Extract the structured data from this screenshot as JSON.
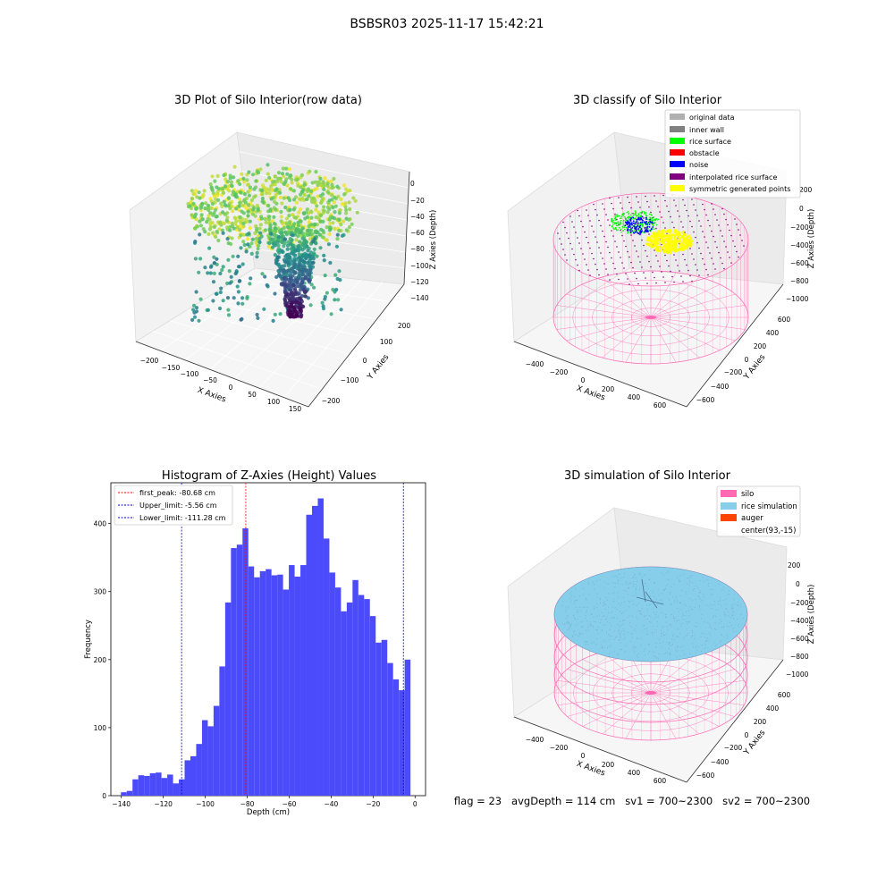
{
  "suptitle": "BSBSR03 2025-11-17 15:42:21",
  "footer": "flag = 23   avgDepth = 114 cm   sv1 = 700~2300   sv2 = 700~2300",
  "colors": {
    "hist_bar": "#4b4bfb",
    "first_peak": "#ff0000",
    "limit": "#0000cc",
    "silo": "#ff69b4",
    "rice_simulation": "#87ceeb",
    "auger": "#ff4500",
    "rice_surface": "#00ff00",
    "noise": "#0000ff",
    "interpolated": "#800080",
    "symmetric": "#ffff00",
    "original": "#b0b0b0",
    "inner_wall": "#808080",
    "obstacle": "#ff0000"
  },
  "panels": {
    "raw": {
      "title": "3D Plot of Silo Interior(row data)",
      "xlabel": "X Axies",
      "ylabel": "Y Axies",
      "zlabel": "Z Axies (Depth)",
      "xticks": [
        "−200",
        "−150",
        "−100",
        "−50",
        "0",
        "50",
        "100",
        "150"
      ],
      "yticks": [
        "200",
        "100",
        "0",
        "−100",
        "−200"
      ],
      "zticks": [
        "0",
        "−20",
        "−40",
        "−60",
        "−80",
        "−100",
        "−120",
        "−140"
      ]
    },
    "classify": {
      "title": "3D classify of Silo Interior",
      "xlabel": "X Axies",
      "ylabel": "Y Axies",
      "zlabel": "Z Axies (Depth)",
      "xticks": [
        "−400",
        "−200",
        "0",
        "200",
        "400",
        "600"
      ],
      "yticks": [
        "600",
        "400",
        "200",
        "0",
        "−200",
        "−400",
        "−600"
      ],
      "zticks": [
        "200",
        "0",
        "−200",
        "−400",
        "−600",
        "−800",
        "−1000"
      ],
      "legend": [
        {
          "label": "original data",
          "color": "#b0b0b0"
        },
        {
          "label": "inner wall",
          "color": "#808080"
        },
        {
          "label": "rice surface",
          "color": "#00ff00"
        },
        {
          "label": "obstacle",
          "color": "#ff0000"
        },
        {
          "label": "noise",
          "color": "#0000ff"
        },
        {
          "label": "interpolated rice surface",
          "color": "#800080"
        },
        {
          "label": "symmetric generated points",
          "color": "#ffff00"
        }
      ]
    },
    "simulation": {
      "title": "3D simulation of Silo Interior",
      "xlabel": "X Axies",
      "ylabel": "Y Axies",
      "zlabel": "Z Axies (Depth)",
      "xticks": [
        "−400",
        "−200",
        "0",
        "200",
        "400",
        "600"
      ],
      "yticks": [
        "600",
        "400",
        "200",
        "0",
        "−200",
        "−400",
        "−600"
      ],
      "zticks": [
        "200",
        "0",
        "−200",
        "−400",
        "−600",
        "−800",
        "−1000"
      ],
      "legend": [
        {
          "label": "silo",
          "color": "#ff69b4"
        },
        {
          "label": "rice simulation",
          "color": "#87ceeb"
        },
        {
          "label": "auger",
          "color": "#ff4500"
        },
        {
          "label": "center(93,-15)",
          "color": ""
        }
      ]
    }
  },
  "chart_data": [
    {
      "type": "bar",
      "title": "Histogram of Z-Axies (Height) Values",
      "xlabel": "Depth (cm)",
      "ylabel": "Frequency",
      "xlim": [
        -145,
        5
      ],
      "ylim": [
        0,
        460
      ],
      "xticks": [
        -140,
        -120,
        -100,
        -80,
        -60,
        -40,
        -20,
        0
      ],
      "yticks": [
        0,
        100,
        200,
        300,
        400
      ],
      "bin_start": -140.2,
      "bin_width": 2.76,
      "values": [
        5,
        7,
        24,
        30,
        29,
        33,
        34,
        26,
        31,
        18,
        24,
        52,
        58,
        76,
        111,
        102,
        132,
        190,
        284,
        364,
        369,
        393,
        337,
        321,
        330,
        333,
        324,
        325,
        303,
        339,
        322,
        339,
        413,
        426,
        437,
        378,
        328,
        306,
        271,
        284,
        317,
        295,
        289,
        264,
        225,
        229,
        195,
        171,
        155,
        200
      ],
      "lines": [
        {
          "label": "first_peak: -80.68 cm",
          "x": -80.68,
          "color": "#ff0000",
          "style": "dashed"
        },
        {
          "label": "Upper_limit: -5.56 cm",
          "x": -5.56,
          "color": "#0000cc",
          "style": "dashed"
        },
        {
          "label": "Lower_limit: -111.28 cm",
          "x": -111.28,
          "color": "#0000cc",
          "style": "dashed"
        }
      ],
      "legend_position": "top-left",
      "grid": false
    }
  ]
}
